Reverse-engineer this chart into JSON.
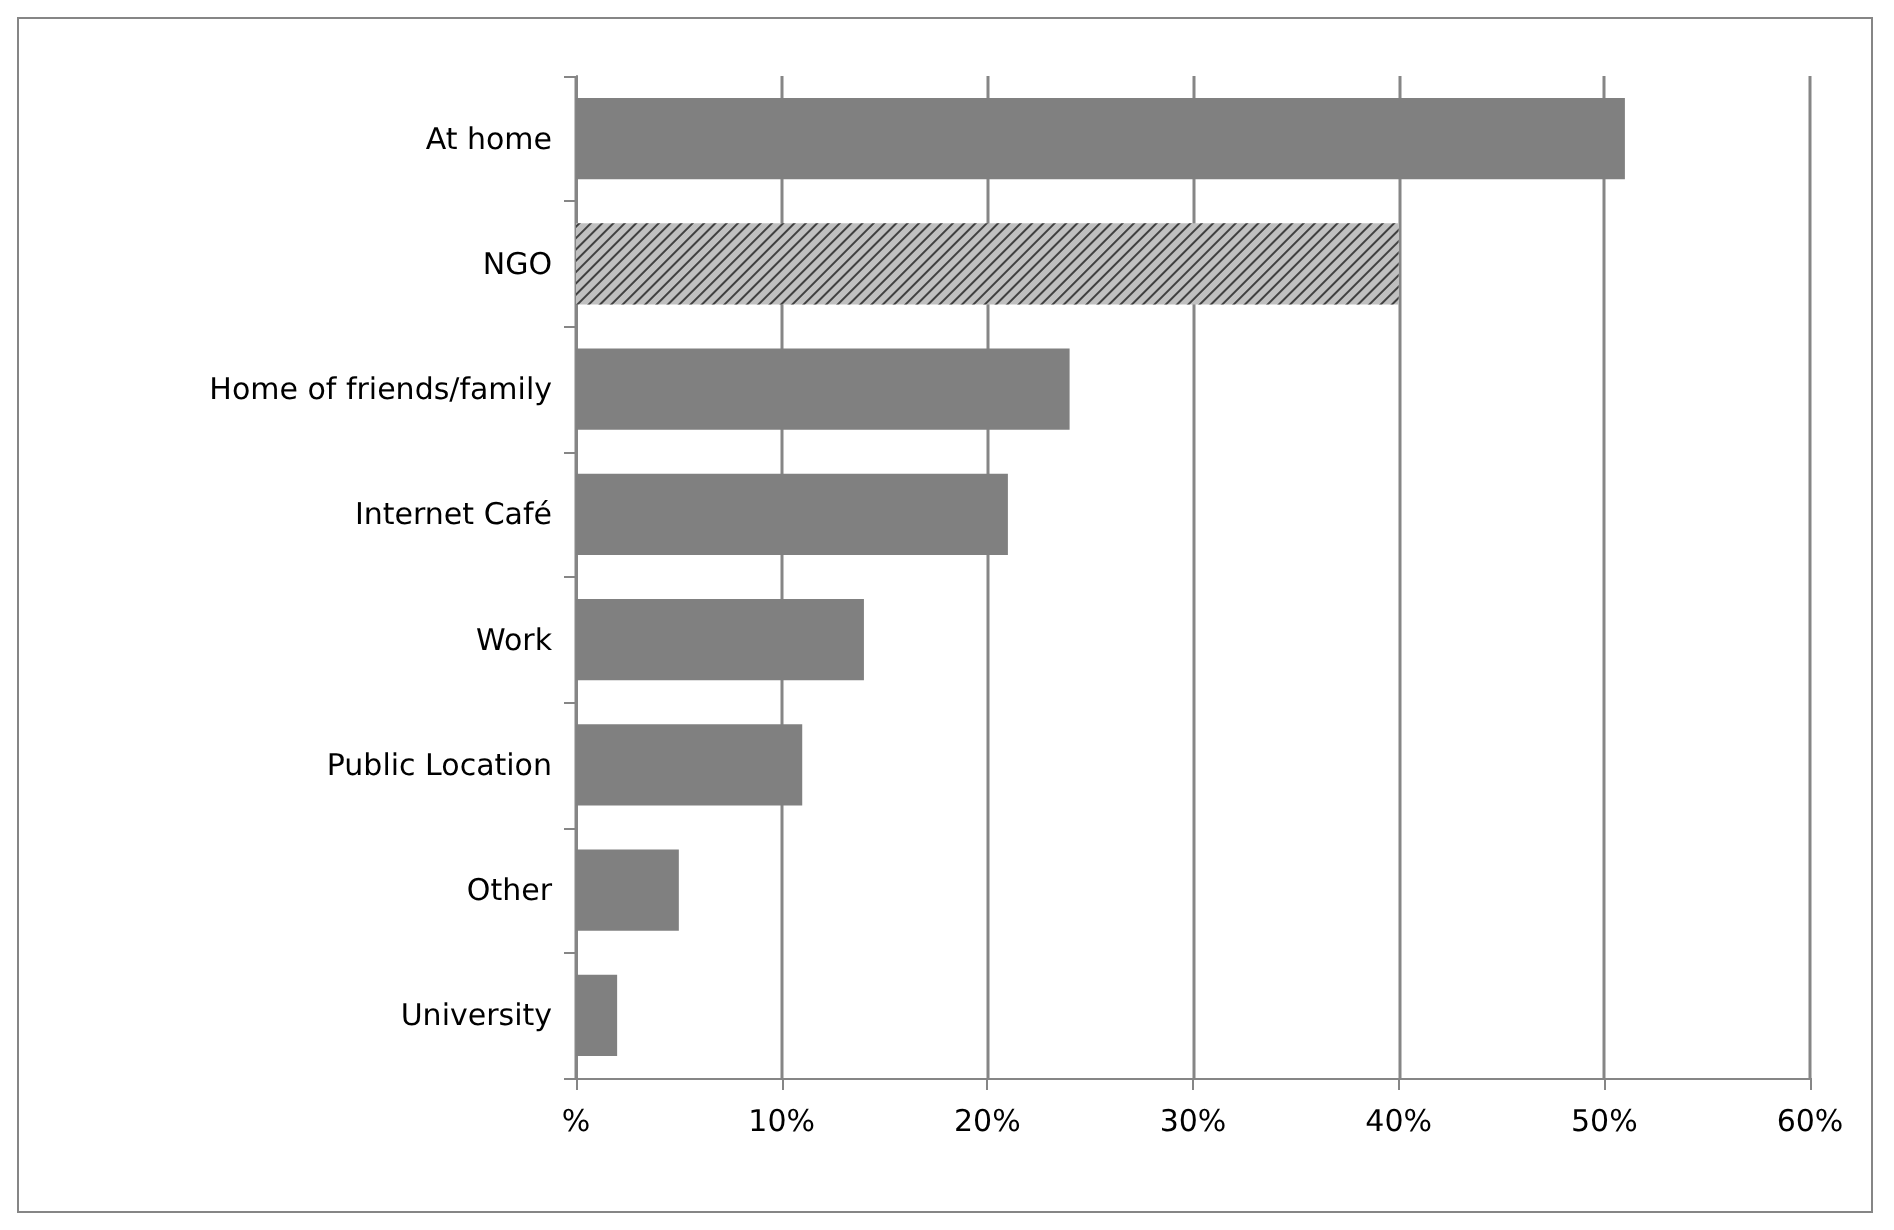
{
  "chart_data": {
    "type": "bar",
    "orientation": "horizontal",
    "categories": [
      "At home",
      "NGO",
      "Home of friends/family",
      "Internet Café",
      "Work",
      "Public Location",
      "Other",
      "University"
    ],
    "values": [
      51,
      40,
      24,
      21,
      14,
      11,
      5,
      2
    ],
    "colors": [
      "#808080",
      "#c0c0c0",
      "#808080",
      "#808080",
      "#808080",
      "#808080",
      "#808080",
      "#808080"
    ],
    "xlim": [
      0,
      60
    ],
    "xticks": [
      {
        "value": 0,
        "label": "%"
      },
      {
        "value": 10,
        "label": "10%"
      },
      {
        "value": 20,
        "label": "20%"
      },
      {
        "value": 30,
        "label": "30%"
      },
      {
        "value": 40,
        "label": "40%"
      },
      {
        "value": 50,
        "label": "50%"
      },
      {
        "value": 60,
        "label": "60%"
      }
    ],
    "grid": "x"
  }
}
